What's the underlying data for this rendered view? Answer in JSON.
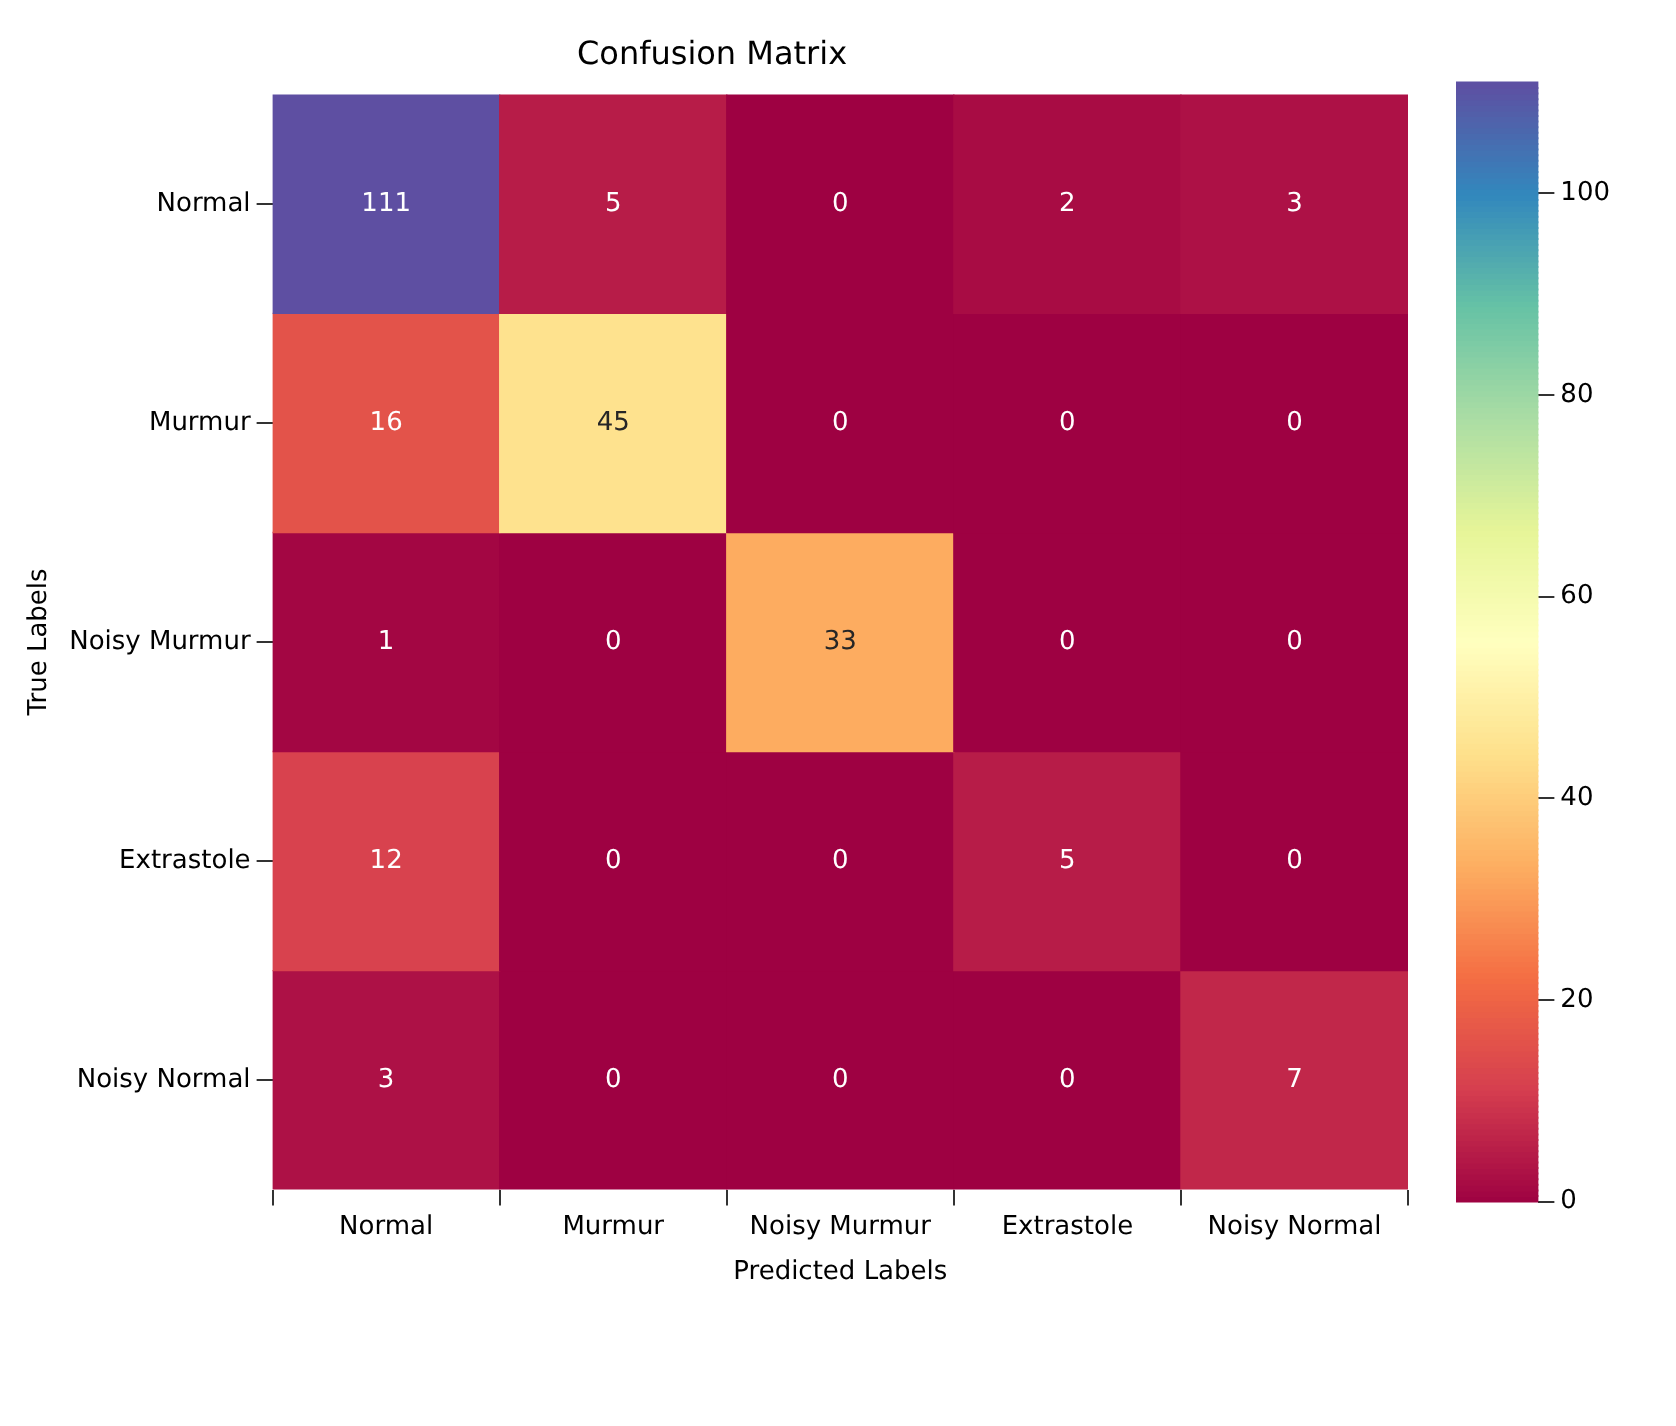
{
  "chart_data": {
    "type": "heatmap",
    "title": "Confusion Matrix",
    "xlabel": "Predicted Labels",
    "ylabel": "True Labels",
    "categories": [
      "Normal",
      "Murmur",
      "Noisy Murmur",
      "Extrastole",
      "Noisy Normal"
    ],
    "y_categories": [
      "Normal",
      "Murmur",
      "Noisy Murmur",
      "Extrastole",
      "Noisy Normal"
    ],
    "cells": [
      [
        111,
        5,
        0,
        2,
        3
      ],
      [
        16,
        45,
        0,
        0,
        0
      ],
      [
        1,
        0,
        33,
        0,
        0
      ],
      [
        12,
        0,
        0,
        5,
        0
      ],
      [
        3,
        0,
        0,
        0,
        7
      ]
    ],
    "clim": [
      0,
      111
    ],
    "cticks": [
      0,
      20,
      40,
      60,
      80,
      100
    ],
    "data_labels": true
  }
}
